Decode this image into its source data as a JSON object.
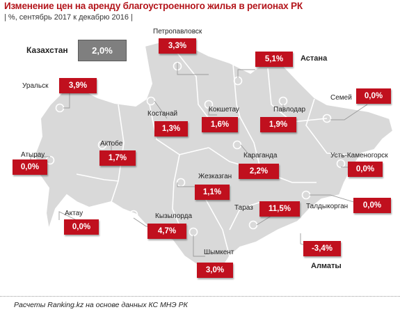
{
  "header": {
    "title": "Изменение цен на аренду благоустроенного жилья в регионах РК",
    "subtitle": "| %, сентябрь 2017 к декабрю 2016 |"
  },
  "country": {
    "label": "Казахстан",
    "value": "2,0%"
  },
  "regions": [
    {
      "name": "Петропавловск",
      "value": "3,3%"
    },
    {
      "name": "Астана",
      "value": "5,1%"
    },
    {
      "name": "Уральск",
      "value": "3,9%"
    },
    {
      "name": "Семей",
      "value": "0,0%"
    },
    {
      "name": "Костанай",
      "value": "1,3%"
    },
    {
      "name": "Кокшетау",
      "value": "1,6%"
    },
    {
      "name": "Павлодар",
      "value": "1,9%"
    },
    {
      "name": "Актобе",
      "value": "1,7%"
    },
    {
      "name": "Атырау",
      "value": "0,0%"
    },
    {
      "name": "Караганда",
      "value": "2,2%"
    },
    {
      "name": "Усть-Каменогорск",
      "value": "0,0%"
    },
    {
      "name": "Жезказган",
      "value": "1,1%"
    },
    {
      "name": "Актау",
      "value": "0,0%"
    },
    {
      "name": "Тараз",
      "value": "11,5%"
    },
    {
      "name": "Талдыкорган",
      "value": "0,0%"
    },
    {
      "name": "Кызылорда",
      "value": "4,7%"
    },
    {
      "name": "Шымкент",
      "value": "3,0%"
    },
    {
      "name": "Алматы",
      "value": "-3,4%"
    }
  ],
  "footnote": "Расчеты Ranking.kz на основе данных КС МНЭ РК",
  "colors": {
    "title": "#b3151b",
    "value_box": "#c0101e",
    "country_box": "#7f7f7f",
    "map_fill": "#d9d9d9"
  }
}
